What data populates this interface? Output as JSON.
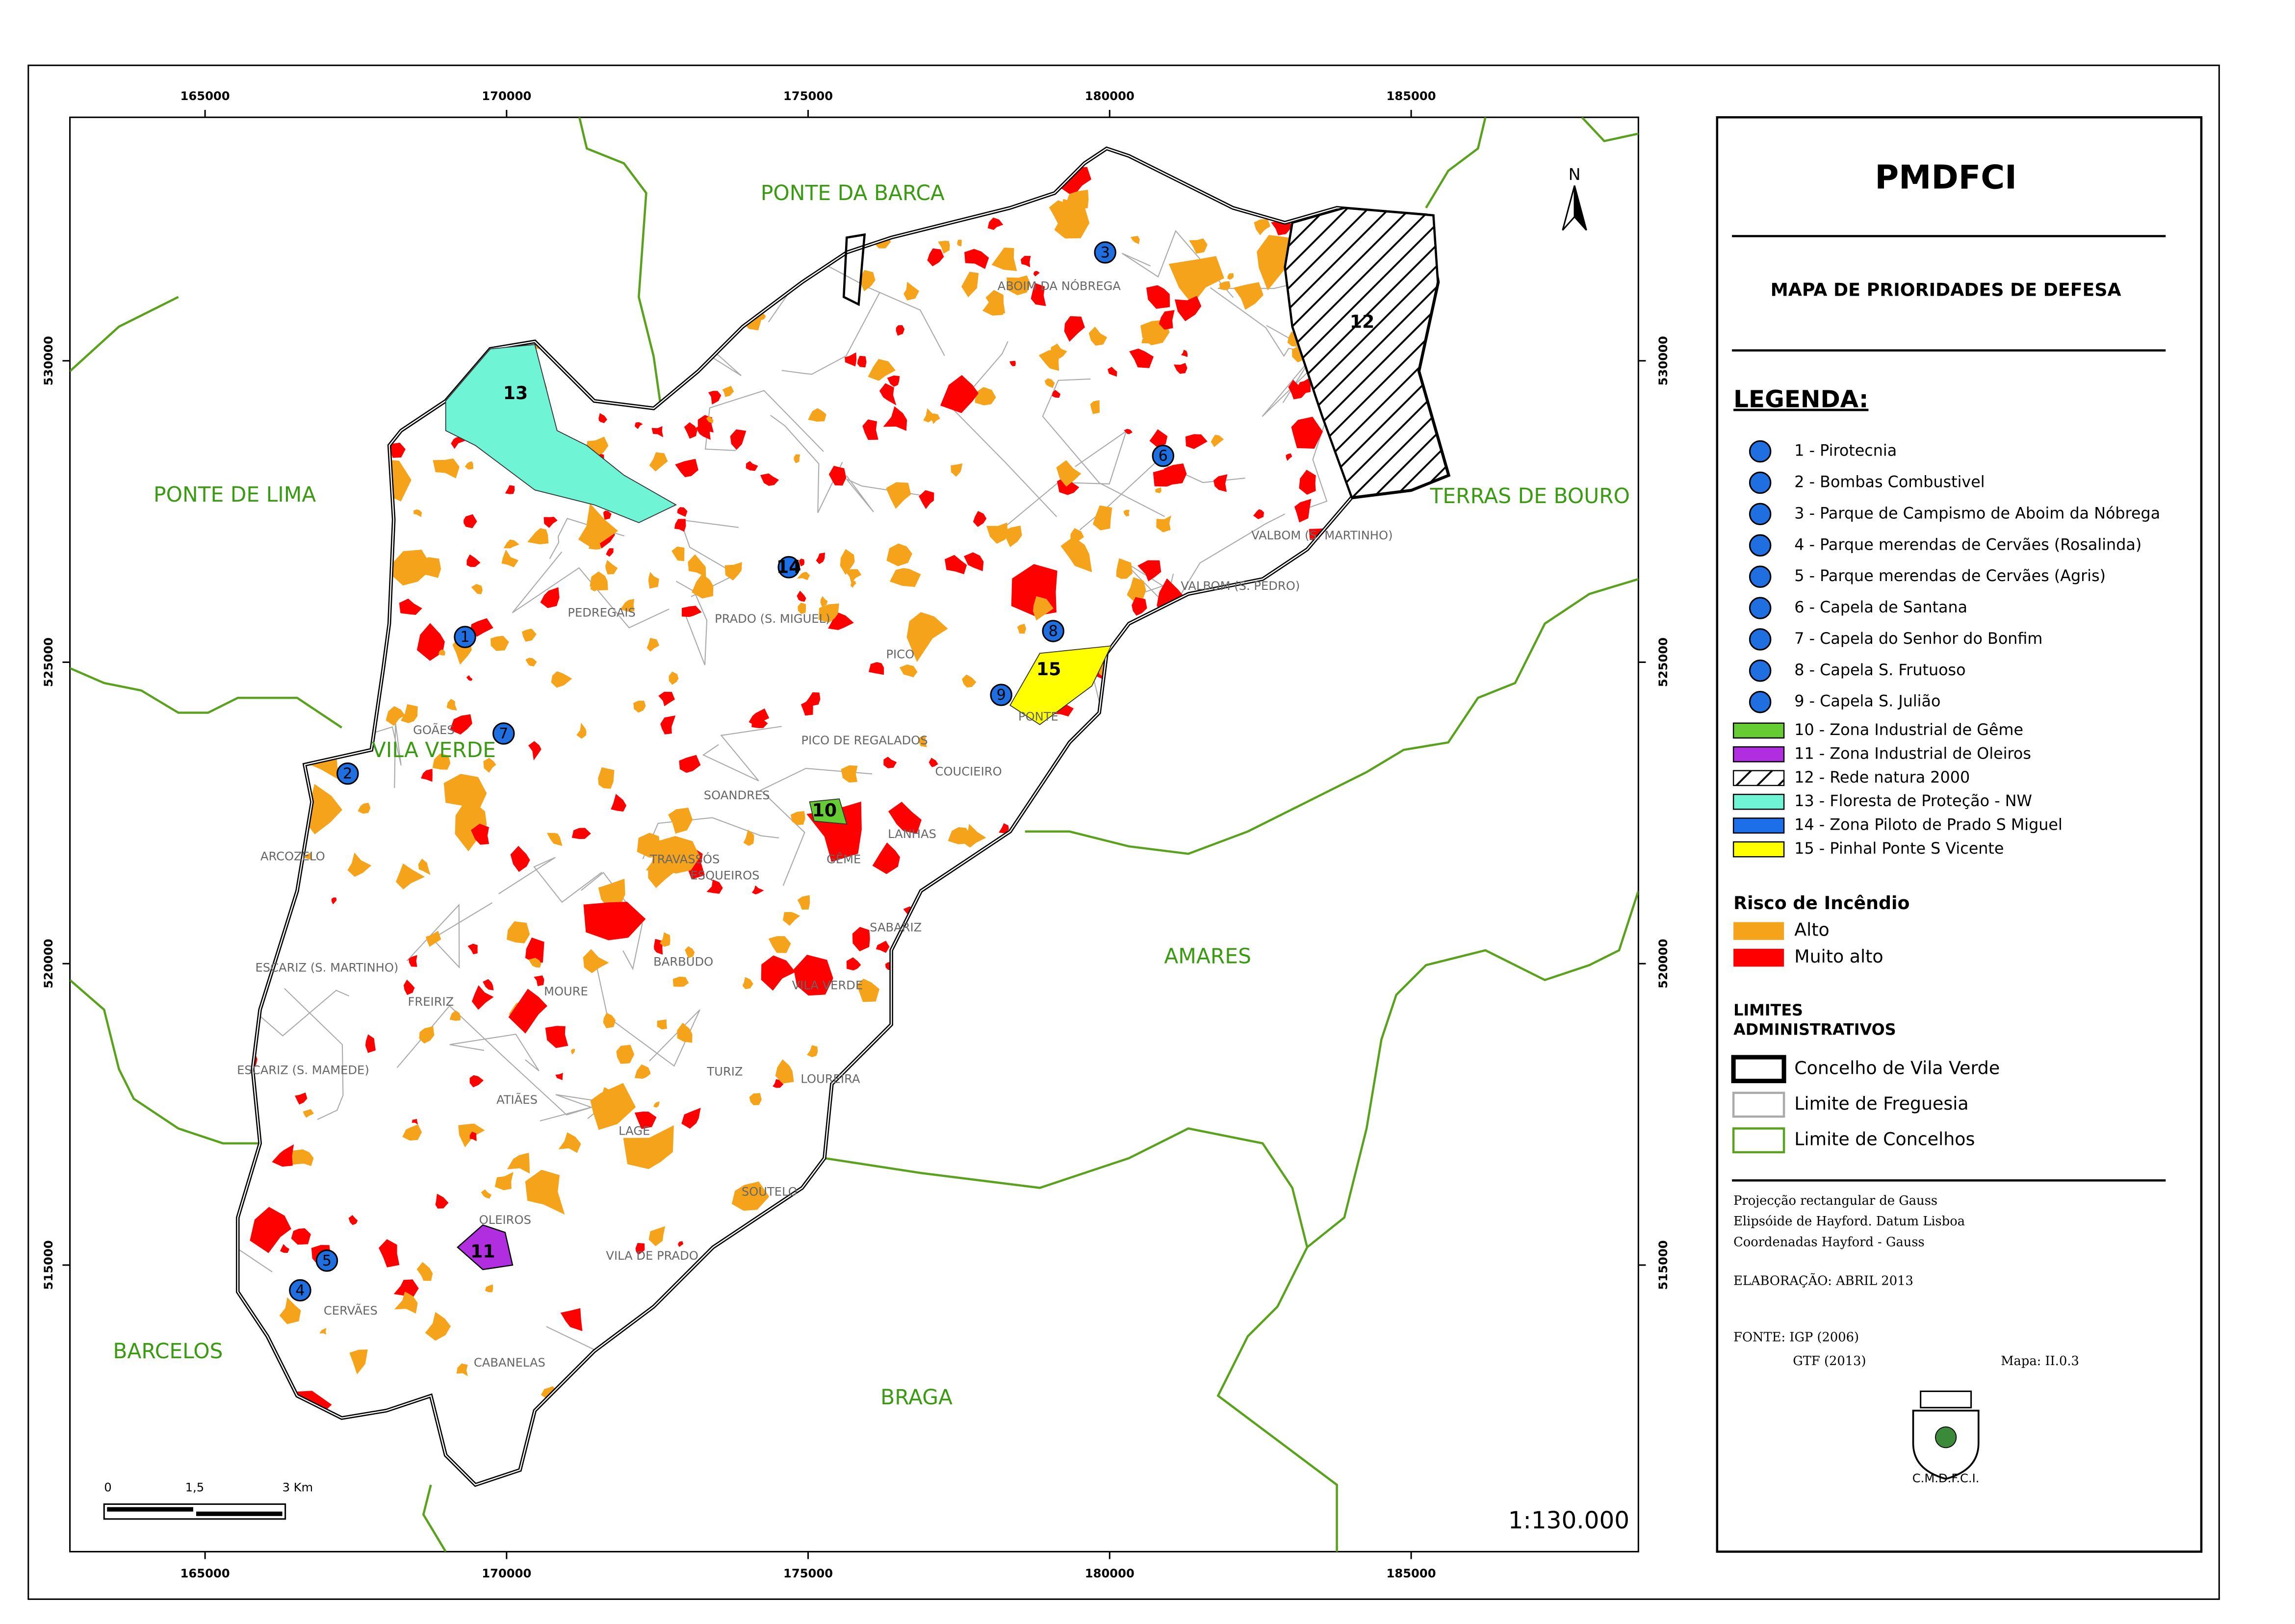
{
  "map": {
    "x_ticks": [
      165000,
      170000,
      175000,
      180000,
      185000
    ],
    "y_ticks": [
      515000,
      520000,
      525000,
      530000
    ],
    "xlim": [
      162759,
      188768
    ],
    "ylim": [
      510246,
      534039
    ],
    "north": "N",
    "scale": "1:130.000",
    "scalebar": [
      "0",
      "1,5",
      "3  Km"
    ],
    "neighbors": [
      "PONTE DA BARCA",
      "PONTE DE LIMA",
      "TERRAS DE BOURO",
      "AMARES",
      "BARCELOS",
      "BRAGA",
      "VILA VERDE"
    ],
    "parishes": [
      "ABOIM DA NÓBREGA",
      "GOÃES",
      "PICO",
      "PICO DE REGALADOS",
      "COUCIEIRO",
      "GÊME",
      "LANHAS",
      "SABARIZ",
      "VILA VERDE",
      "LOUREIRA",
      "TURIZ",
      "LAGE",
      "SOUTELO",
      "VILA DE PRADO",
      "CABANELAS",
      "CERVÃES",
      "ARCOZELO",
      "ESCARIZ (S. MARTINHO)",
      "ESCARIZ (S. MAMEDE)",
      "FREIRIZ",
      "MOURE",
      "ATIÃES",
      "BARBUDO",
      "TRAVASSÓS",
      "ESQUEIROS",
      "SOANDRES",
      "OLEIROS",
      "VALBOM (S. PEDRO)",
      "VALBOM (S. MARTINHO)",
      "PEDREGAIS",
      "PONTE",
      "PRADO (S. MIGUEL)"
    ],
    "markers": [
      "1",
      "2",
      "3",
      "4",
      "5",
      "6",
      "7",
      "8",
      "9",
      "10",
      "11",
      "12",
      "13",
      "14",
      "15"
    ]
  },
  "panel": {
    "title": "PMDFCI",
    "subtitle": "MAPA DE PRIORIDADES DE DEFESA",
    "legend_heading": "LEGENDA:",
    "points": [
      "1 - Pirotecnia",
      "2 - Bombas Combustivel",
      "3 - Parque de Campismo de Aboim da Nóbrega",
      "4 - Parque merendas de Cervães (Rosalinda)",
      "5 - Parque merendas de Cervães (Agris)",
      "6 - Capela de Santana",
      "7 - Capela do Senhor do Bonfim",
      "8 - Capela S. Frutuoso",
      "9 - Capela S. Julião"
    ],
    "point_color": "#1f6fe0",
    "areas": [
      {
        "label": "10 - Zona Industrial de Gême",
        "color": "#66cc33"
      },
      {
        "label": "11 - Zona Industrial de Oleiros",
        "color": "#b12ee0"
      },
      {
        "label": "12 - Rede natura 2000",
        "color": "hatch"
      },
      {
        "label": "13 - Floresta de Proteção - NW",
        "color": "#6ff5d6"
      },
      {
        "label": "14 - Zona Piloto de Prado S Miguel",
        "color": "#1c6fe8"
      },
      {
        "label": "15 - Pinhal Ponte S Vicente",
        "color": "#ffff00"
      }
    ],
    "risk_heading": "Risco de Incêndio",
    "risk": [
      {
        "label": "Alto",
        "color": "#f5a31b"
      },
      {
        "label": "Muito alto",
        "color": "#ff0000"
      }
    ],
    "limits_heading": [
      "LIMITES",
      "ADMINISTRATIVOS"
    ],
    "limits": [
      {
        "label": "Concelho de Vila Verde",
        "color": "#000000"
      },
      {
        "label": "Limite de Freguesia",
        "color": "#aaaaaa"
      },
      {
        "label": "Limite de Concelhos",
        "color": "#5aa21e"
      }
    ],
    "notes": [
      "Projecção rectangular de Gauss",
      "Elipsóide de Hayford. Datum Lisboa",
      "Coordenadas Hayford - Gauss"
    ],
    "elaboration": "ELABORAÇÃO: ABRIL 2013",
    "source": "FONTE: IGP (2006)",
    "source2": "GTF (2013)",
    "map_id": "Mapa: II.0.3",
    "emblem_caption": "C.M.D.F.C.I."
  }
}
